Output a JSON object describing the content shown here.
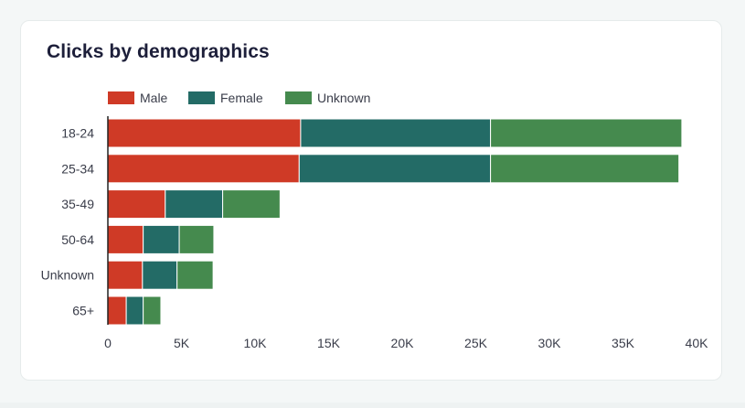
{
  "card": {
    "title": "Clicks by demographics"
  },
  "colors": {
    "background": "#f4f7f7",
    "card": "#ffffff",
    "male": "#cf3a26",
    "female": "#236b66",
    "unknown": "#458a4e",
    "axis": "#222222"
  },
  "chart_data": {
    "type": "bar",
    "orientation": "horizontal",
    "stacked": true,
    "title": "Clicks by demographics",
    "xlabel": "",
    "ylabel": "",
    "categories": [
      "18-24",
      "25-34",
      "35-49",
      "50-64",
      "Unknown",
      "65+"
    ],
    "series": [
      {
        "name": "Male",
        "color": "#cf3a26",
        "values": [
          13100,
          13000,
          3900,
          2400,
          2350,
          1250
        ]
      },
      {
        "name": "Female",
        "color": "#236b66",
        "values": [
          12900,
          13000,
          3900,
          2450,
          2350,
          1150
        ]
      },
      {
        "name": "Unknown",
        "color": "#458a4e",
        "values": [
          13000,
          12800,
          3900,
          2350,
          2450,
          1200
        ]
      }
    ],
    "xlim": [
      0,
      40000
    ],
    "xticks": [
      0,
      5000,
      10000,
      15000,
      20000,
      25000,
      30000,
      35000,
      40000
    ],
    "xtick_labels": [
      "0",
      "5K",
      "10K",
      "15K",
      "20K",
      "25K",
      "30K",
      "35K",
      "40K"
    ],
    "grid": false,
    "legend_position": "top-left"
  }
}
